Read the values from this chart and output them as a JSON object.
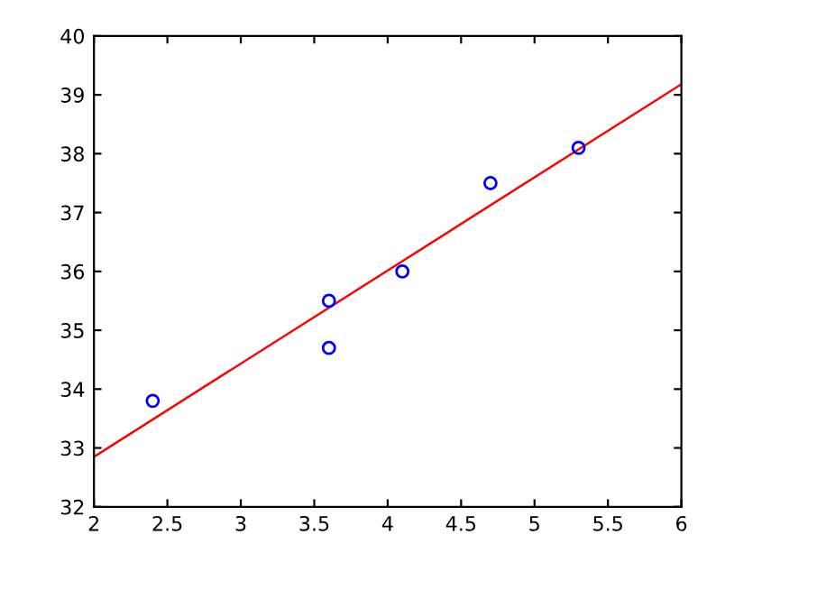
{
  "chart_data": {
    "type": "scatter",
    "xlim": [
      2,
      6
    ],
    "ylim": [
      32,
      40
    ],
    "xticks": [
      2,
      2.5,
      3,
      3.5,
      4,
      4.5,
      5,
      5.5,
      6
    ],
    "yticks": [
      32,
      33,
      34,
      35,
      36,
      37,
      38,
      39,
      40
    ],
    "grid": false,
    "series": [
      {
        "color": "#0000ff",
        "marker": "circle",
        "x": [
          2.4,
          3.6,
          3.6,
          4.1,
          4.7,
          5.3
        ],
        "values": [
          33.8,
          35.5,
          34.7,
          36.0,
          37.5,
          38.1
        ]
      },
      {
        "type": "line",
        "color": "#ff0000",
        "marker": "none",
        "line_style": "solid",
        "x": [
          2,
          6
        ],
        "values": [
          32.85,
          39.18
        ]
      }
    ]
  }
}
